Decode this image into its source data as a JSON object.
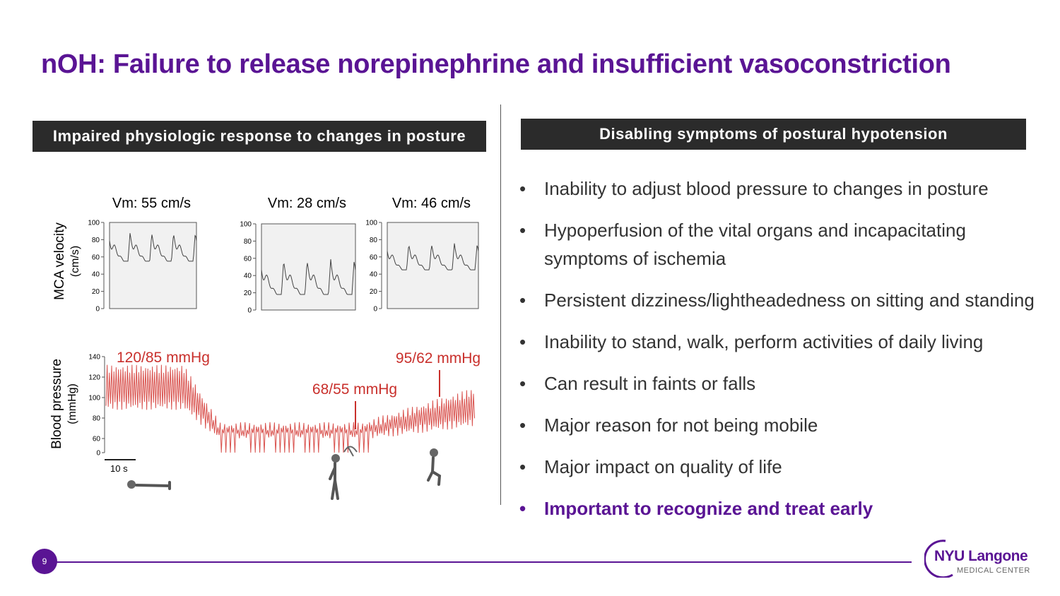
{
  "title": "nOH: Failure to release norepinephrine and insufficient vasoconstriction",
  "left_panel": {
    "heading": "Impaired physiologic response to changes in posture",
    "figure": {
      "mca": {
        "axis_label": "MCA velocity",
        "axis_unit": "(cm/s)",
        "panels": [
          {
            "label": "Vm: 55 cm/s",
            "ticks": [
              0,
              20,
              40,
              60,
              80,
              100
            ]
          },
          {
            "label": "Vm: 28 cm/s",
            "ticks": [
              0,
              20,
              40,
              60,
              80,
              100
            ]
          },
          {
            "label": "Vm: 46 cm/s",
            "ticks": [
              0,
              20,
              40,
              60,
              80,
              100
            ]
          }
        ]
      },
      "bp": {
        "axis_label": "Blood pressure",
        "axis_unit": "(mmHg)",
        "ticks": [
          0,
          60,
          80,
          100,
          120,
          140
        ],
        "annotations": [
          "120/85 mmHg",
          "68/55 mmHg",
          "95/62 mmHg"
        ],
        "scale_label": "10 s"
      }
    }
  },
  "right_panel": {
    "heading": "Disabling symptoms of postural hypotension",
    "bullets": [
      "Inability to adjust blood pressure to changes in posture",
      "Hypoperfusion of the vital organs and incapacitating symptoms of ischemia",
      "Persistent dizziness/lightheadedness on sitting and standing",
      "Inability to stand, walk, perform activities of daily living",
      "Can result in faints or falls",
      "Major reason for not being mobile",
      "Major impact on quality of life"
    ],
    "highlight": "Important to recognize and treat early"
  },
  "footer": {
    "page_number": "9",
    "logo_name": "NYU Langone",
    "logo_sub": "MEDICAL CENTER"
  }
}
